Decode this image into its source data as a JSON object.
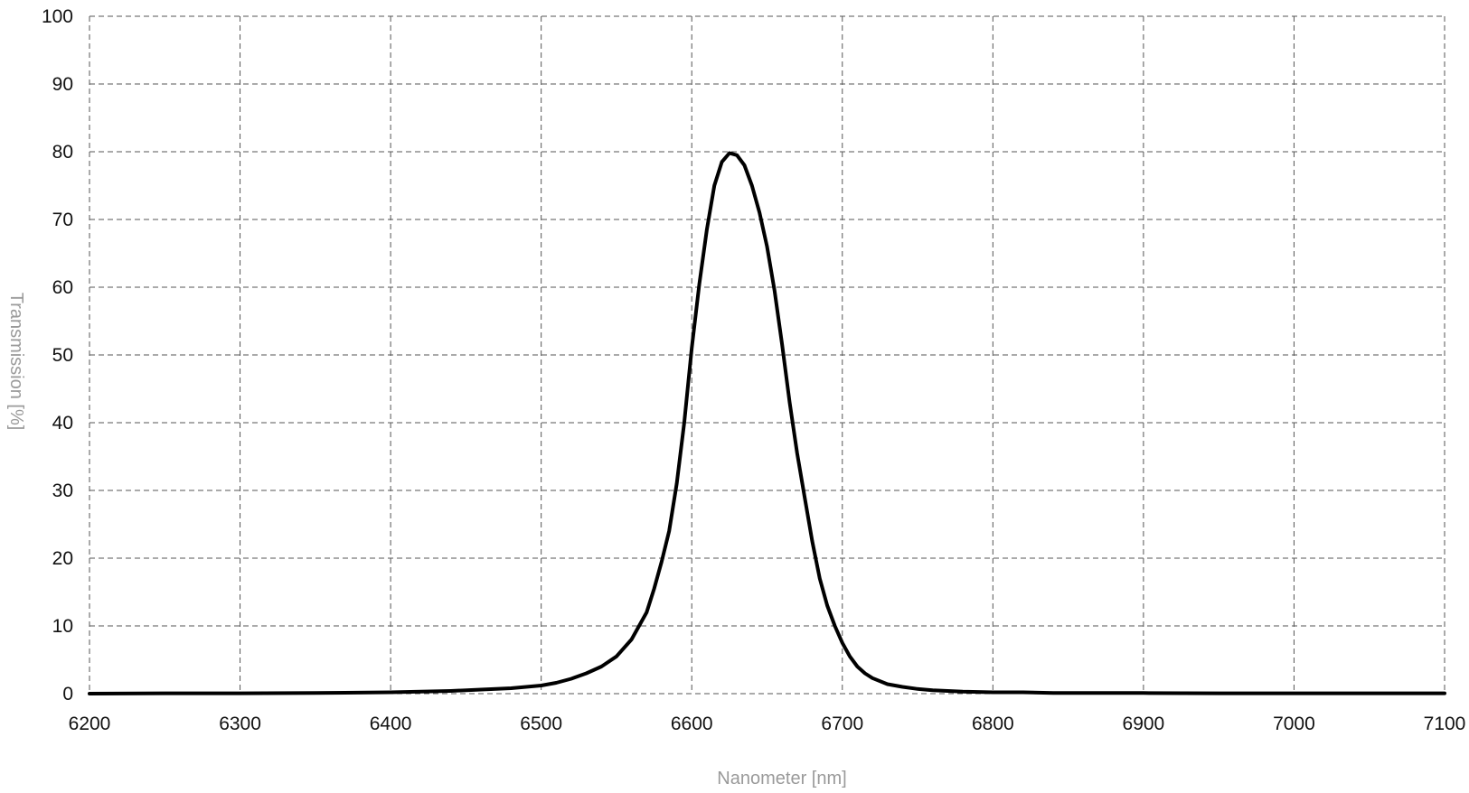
{
  "chart_data": {
    "type": "line",
    "title": "",
    "xlabel": "Nanometer [nm]",
    "ylabel": "Transmission [%]",
    "xlim": [
      6200,
      7100
    ],
    "ylim": [
      0,
      100
    ],
    "x_ticks": [
      6200,
      6300,
      6400,
      6500,
      6600,
      6700,
      6800,
      6900,
      7000,
      7100
    ],
    "y_ticks": [
      0,
      10,
      20,
      30,
      40,
      50,
      60,
      70,
      80,
      90,
      100
    ],
    "grid": true,
    "legend": "none",
    "series": [
      {
        "color": "#000000",
        "x": [
          6200,
          6250,
          6300,
          6350,
          6400,
          6420,
          6440,
          6460,
          6480,
          6500,
          6510,
          6520,
          6530,
          6540,
          6550,
          6560,
          6570,
          6575,
          6580,
          6585,
          6590,
          6595,
          6600,
          6605,
          6610,
          6615,
          6620,
          6625,
          6630,
          6635,
          6640,
          6645,
          6650,
          6655,
          6660,
          6665,
          6670,
          6675,
          6680,
          6685,
          6690,
          6695,
          6700,
          6705,
          6710,
          6715,
          6720,
          6730,
          6740,
          6750,
          6760,
          6770,
          6780,
          6800,
          6820,
          6840,
          6860,
          6880,
          6900,
          6950,
          7000,
          7050,
          7100
        ],
        "y": [
          0,
          0.05,
          0.05,
          0.1,
          0.2,
          0.3,
          0.4,
          0.6,
          0.8,
          1.2,
          1.6,
          2.2,
          3.0,
          4.0,
          5.5,
          8.0,
          12.0,
          15.5,
          19.5,
          24.0,
          31.0,
          40.0,
          51.0,
          60.5,
          68.5,
          75.0,
          78.5,
          79.8,
          79.5,
          78.0,
          75.0,
          71.0,
          66.0,
          59.5,
          51.5,
          43.0,
          35.5,
          29.0,
          22.5,
          17.0,
          13.0,
          10.0,
          7.5,
          5.5,
          4.0,
          3.0,
          2.3,
          1.4,
          1.0,
          0.7,
          0.5,
          0.4,
          0.3,
          0.2,
          0.2,
          0.1,
          0.1,
          0.1,
          0.1,
          0.05,
          0.05,
          0.05,
          0.05
        ]
      }
    ]
  }
}
